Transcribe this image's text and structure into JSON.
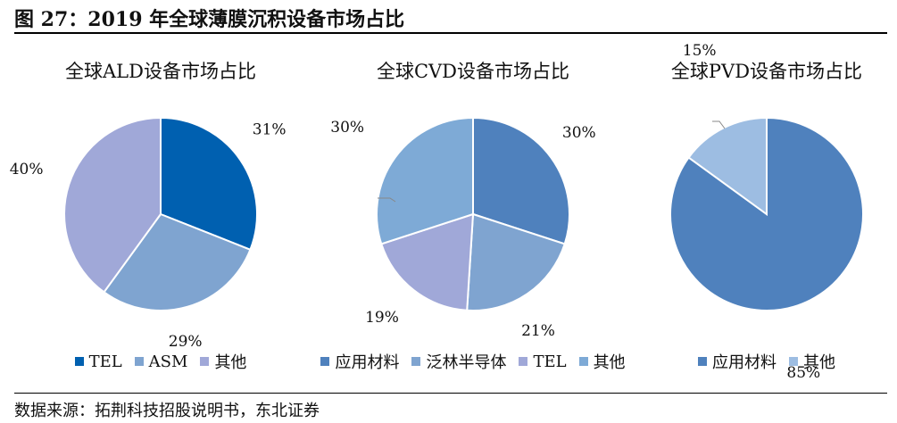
{
  "figure_title": "图 27：2019 年全球薄膜沉积设备市场占比",
  "source": "数据来源：拓荆科技招股说明书，东北证券",
  "chart_data": [
    {
      "type": "pie",
      "title": "全球ALD设备市场占比",
      "slices": [
        {
          "label": "TEL",
          "value": 31,
          "value_label": "31%",
          "color": "#0060b0"
        },
        {
          "label": "ASM",
          "value": 29,
          "value_label": "29%",
          "color": "#7fa4d0"
        },
        {
          "label": "其他",
          "value": 40,
          "value_label": "40%",
          "color": "#a0a8d8"
        }
      ]
    },
    {
      "type": "pie",
      "title": "全球CVD设备市场占比",
      "slices": [
        {
          "label": "应用材料",
          "value": 30,
          "value_label": "30%",
          "color": "#4f81bd"
        },
        {
          "label": "泛林半导体",
          "value": 21,
          "value_label": "21%",
          "color": "#7fa4d0"
        },
        {
          "label": "TEL",
          "value": 19,
          "value_label": "19%",
          "color": "#a0a8d8"
        },
        {
          "label": "其他",
          "value": 30,
          "value_label": "30%",
          "color": "#7eaad6"
        }
      ]
    },
    {
      "type": "pie",
      "title": "全球PVD设备市场占比",
      "slices": [
        {
          "label": "应用材料",
          "value": 85,
          "value_label": "85%",
          "color": "#4f81bd"
        },
        {
          "label": "其他",
          "value": 15,
          "value_label": "15%",
          "color": "#9dbde2"
        }
      ]
    }
  ]
}
